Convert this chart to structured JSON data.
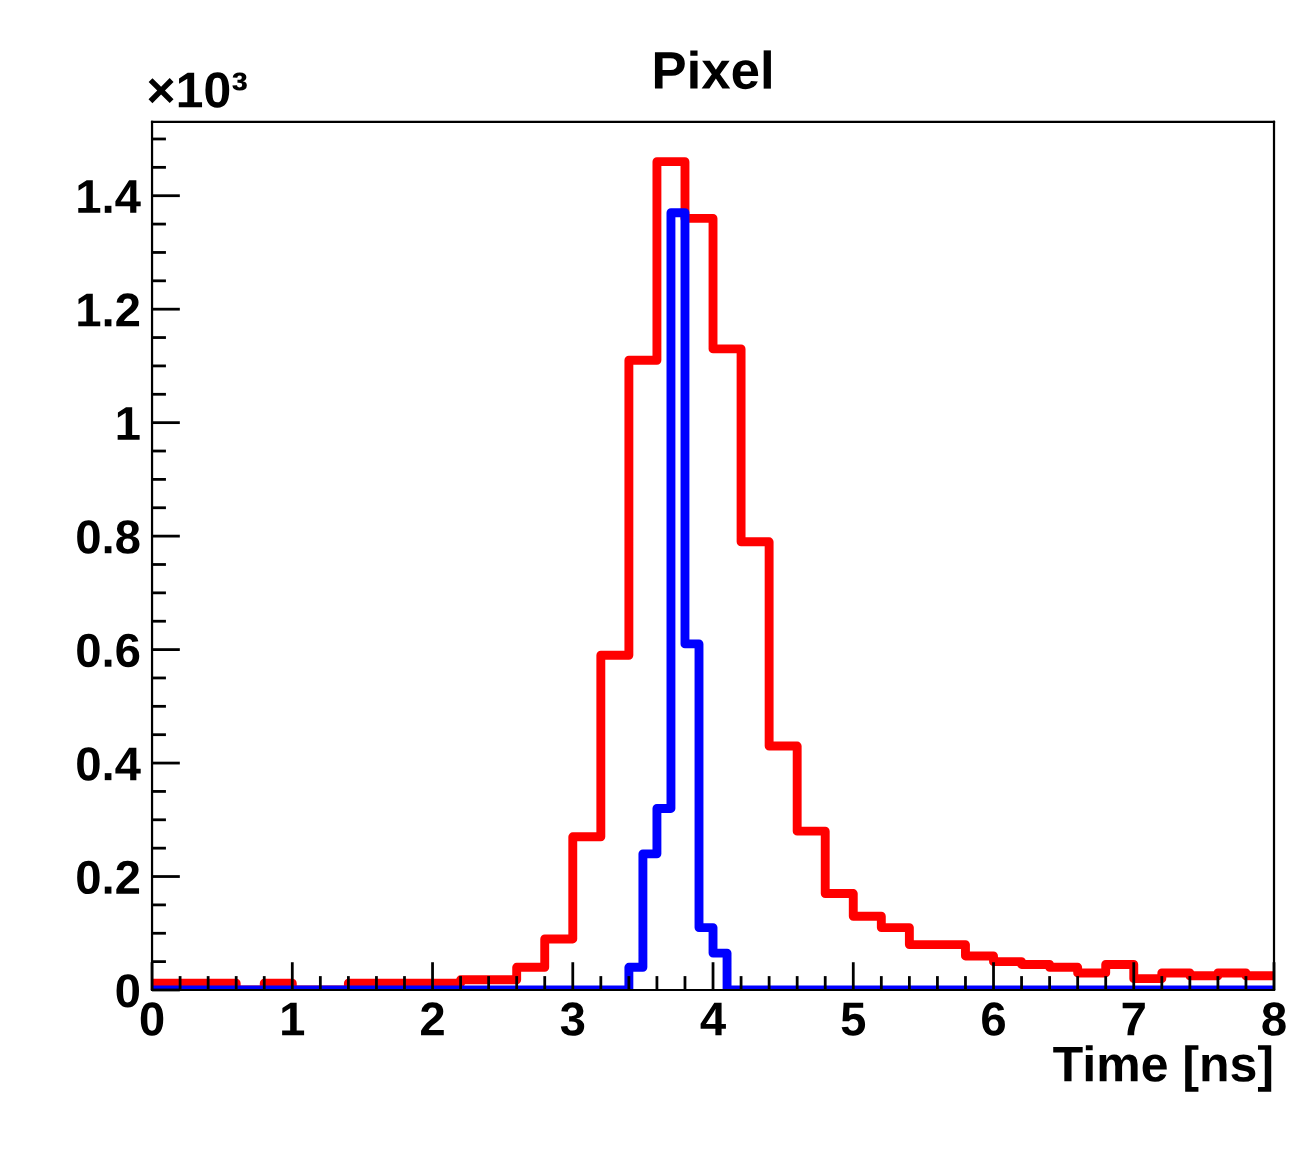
{
  "chart_data": {
    "type": "histogram",
    "title": "Pixel",
    "xlabel": "Time [ns]",
    "annotations": [
      "×10³"
    ],
    "xlim": [
      0,
      8
    ],
    "xticks": [
      0,
      1,
      2,
      3,
      4,
      5,
      6,
      7,
      8
    ],
    "ylim": [
      0,
      1.53
    ],
    "yticks": [
      0,
      0.2,
      0.4,
      0.6,
      0.8,
      1,
      1.2,
      1.4
    ],
    "grid": false,
    "line_style": "solid",
    "bins": [
      0,
      0.1,
      0.2,
      0.3,
      0.4,
      0.5,
      0.6,
      0.7,
      0.8,
      0.9,
      1.0,
      1.1,
      1.2,
      1.3,
      1.4,
      1.5,
      1.6,
      1.7,
      1.8,
      1.9,
      2.0,
      2.1,
      2.2,
      2.3,
      2.4,
      2.5,
      2.6,
      2.7,
      2.8,
      2.9,
      3.0,
      3.1,
      3.2,
      3.3,
      3.4,
      3.5,
      3.6,
      3.7,
      3.8,
      3.9,
      4.0,
      4.1,
      4.2,
      4.3,
      4.4,
      4.5,
      4.6,
      4.7,
      4.8,
      4.9,
      5.0,
      5.1,
      5.2,
      5.3,
      5.4,
      5.5,
      5.6,
      5.7,
      5.8,
      5.9,
      6.0,
      6.1,
      6.2,
      6.3,
      6.4,
      6.5,
      6.6,
      6.7,
      6.8,
      6.9,
      7.0,
      7.1,
      7.2,
      7.3,
      7.4,
      7.5,
      7.6,
      7.7,
      7.8,
      7.9,
      8.0
    ],
    "series": [
      {
        "color": "#ff0000",
        "values": [
          0.012,
          0.012,
          0.012,
          0.012,
          0.012,
          0.012,
          0,
          0,
          0.012,
          0.012,
          0,
          0,
          0,
          0,
          0.012,
          0.012,
          0.012,
          0.012,
          0.012,
          0.012,
          0.012,
          0.012,
          0.018,
          0.018,
          0.018,
          0.018,
          0.04,
          0.04,
          0.09,
          0.09,
          0.27,
          0.27,
          0.59,
          0.59,
          1.11,
          1.11,
          1.46,
          1.46,
          1.36,
          1.36,
          1.13,
          1.13,
          0.79,
          0.79,
          0.43,
          0.43,
          0.28,
          0.28,
          0.17,
          0.17,
          0.13,
          0.13,
          0.11,
          0.11,
          0.08,
          0.08,
          0.08,
          0.08,
          0.06,
          0.06,
          0.05,
          0.05,
          0.045,
          0.045,
          0.04,
          0.04,
          0.03,
          0.03,
          0.045,
          0.045,
          0.02,
          0.02,
          0.03,
          0.03,
          0.025,
          0.025,
          0.03,
          0.03,
          0.025,
          0.025
        ]
      },
      {
        "color": "#0000ff",
        "values": [
          0,
          0,
          0,
          0,
          0,
          0,
          0,
          0,
          0,
          0,
          0,
          0,
          0,
          0,
          0,
          0,
          0,
          0,
          0,
          0,
          0,
          0,
          0,
          0,
          0,
          0,
          0,
          0,
          0,
          0,
          0,
          0,
          0,
          0,
          0.04,
          0.24,
          0.32,
          1.37,
          0.61,
          0.11,
          0.065,
          0,
          0,
          0,
          0,
          0,
          0,
          0,
          0,
          0,
          0,
          0,
          0,
          0,
          0,
          0,
          0,
          0,
          0,
          0,
          0,
          0,
          0,
          0,
          0,
          0,
          0,
          0,
          0,
          0,
          0,
          0,
          0,
          0,
          0,
          0,
          0,
          0,
          0,
          0
        ]
      }
    ]
  }
}
